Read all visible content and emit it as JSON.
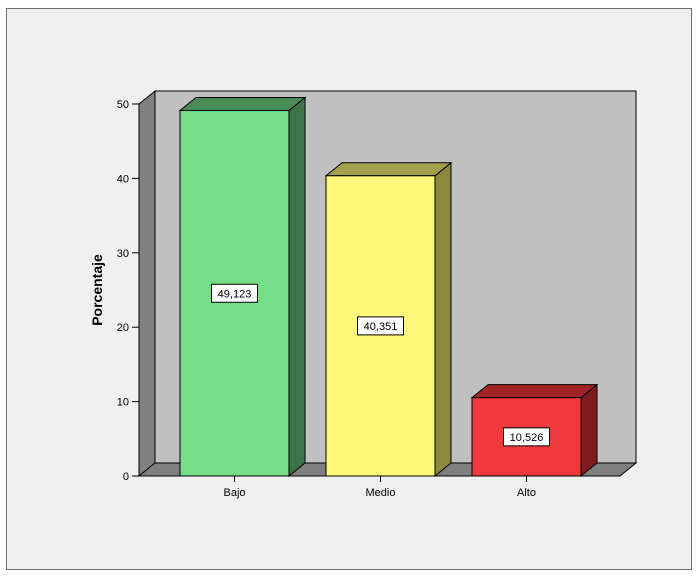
{
  "chart_data": {
    "type": "bar",
    "categories": [
      "Bajo",
      "Medio",
      "Alto"
    ],
    "values": [
      49.123,
      40.351,
      10.526
    ],
    "value_labels": [
      "49,123",
      "40,351",
      "10,526"
    ],
    "title": "",
    "xlabel": "",
    "ylabel": "Porcentaje",
    "ylim": [
      0,
      50
    ],
    "yticks": [
      0,
      10,
      20,
      30,
      40,
      50
    ],
    "grid": false,
    "style": "3d",
    "colors": [
      {
        "front": "#77dd89",
        "top": "#4a8c56",
        "side": "#3d7548"
      },
      {
        "front": "#fdf879",
        "top": "#a39f4c",
        "side": "#8d893f"
      },
      {
        "front": "#ee3a3d",
        "top": "#a12325",
        "side": "#7f1c1e"
      }
    ],
    "wall_color": "#c0c0c0",
    "side_wall_color": "#808080"
  }
}
